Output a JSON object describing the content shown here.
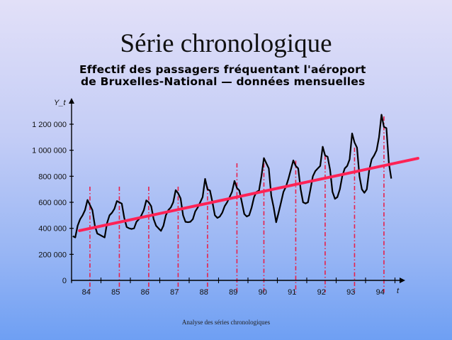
{
  "slide": {
    "title": "Série chronologique",
    "subtitle_line1": "Effectif des passagers fréquentant l'aéroport",
    "subtitle_line2": "de Bruxelles-National — données mensuelles",
    "footer": "Analyse des séries chronologiques"
  },
  "chart_data": {
    "type": "line",
    "title": "Effectif des passagers fréquentant l'aéroport de Bruxelles-National — données mensuelles",
    "xlabel": "t",
    "ylabel": "Y_t",
    "x_tick_labels": [
      "84",
      "85",
      "86",
      "87",
      "88",
      "89",
      "90",
      "91",
      "92",
      "93",
      "94"
    ],
    "y_tick_labels": [
      "0",
      "200 000",
      "400 000",
      "600 000",
      "800 000",
      "1 000 000",
      "1 200 000"
    ],
    "y_ticks": [
      0,
      200000,
      400000,
      600000,
      800000,
      1000000,
      1200000
    ],
    "ylim": [
      0,
      1300000
    ],
    "xlim": [
      1984,
      1995.4
    ],
    "grid": false,
    "frequency": "monthly",
    "start": "1984-01",
    "series": [
      {
        "values": [
          340000,
          330000,
          420000,
          470000,
          500000,
          540000,
          618000,
          580000,
          540000,
          420000,
          360000,
          350000,
          340000,
          330000,
          440000,
          500000,
          520000,
          550000,
          610000,
          600000,
          590000,
          480000,
          410000,
          400000,
          395000,
          400000,
          450000,
          470000,
          500000,
          540000,
          615000,
          600000,
          570000,
          470000,
          420000,
          400000,
          380000,
          420000,
          500000,
          540000,
          560000,
          600000,
          693000,
          670000,
          630000,
          500000,
          450000,
          447000,
          450000,
          470000,
          530000,
          560000,
          600000,
          640000,
          780000,
          700000,
          690000,
          600000,
          500000,
          480000,
          490000,
          520000,
          570000,
          600000,
          640000,
          680000,
          764000,
          710000,
          690000,
          600000,
          510000,
          491000,
          500000,
          560000,
          640000,
          680000,
          690000,
          800000,
          940000,
          900000,
          860000,
          650000,
          560000,
          447000,
          520000,
          600000,
          680000,
          720000,
          780000,
          850000,
          922000,
          880000,
          860000,
          700000,
          600000,
          591000,
          600000,
          700000,
          800000,
          840000,
          860000,
          880000,
          1027000,
          960000,
          950000,
          850000,
          680000,
          627000,
          640000,
          700000,
          800000,
          860000,
          880000,
          930000,
          1129000,
          1060000,
          1020000,
          800000,
          700000,
          673000,
          700000,
          850000,
          930000,
          960000,
          1000000,
          1100000,
          1273000,
          1180000,
          1170000,
          900000,
          782000
        ],
        "color": "#000000"
      }
    ],
    "trend_line": {
      "from": {
        "t": 1984.27,
        "y": 382000
      },
      "to": {
        "t": 1995.78,
        "y": 938000
      },
      "color": "#ff2255"
    },
    "peak_markers": {
      "months": [
        "1984-08",
        "1985-08",
        "1986-08",
        "1987-08",
        "1988-08",
        "1989-08",
        "1990-07",
        "1991-08",
        "1992-08",
        "1993-08",
        "1994-08"
      ],
      "values": [
        720000,
        720000,
        720000,
        720000,
        720000,
        900000,
        900000,
        920000,
        960000,
        1020000,
        1260000
      ],
      "color": "#e8204a",
      "style": "dash-dot"
    }
  }
}
